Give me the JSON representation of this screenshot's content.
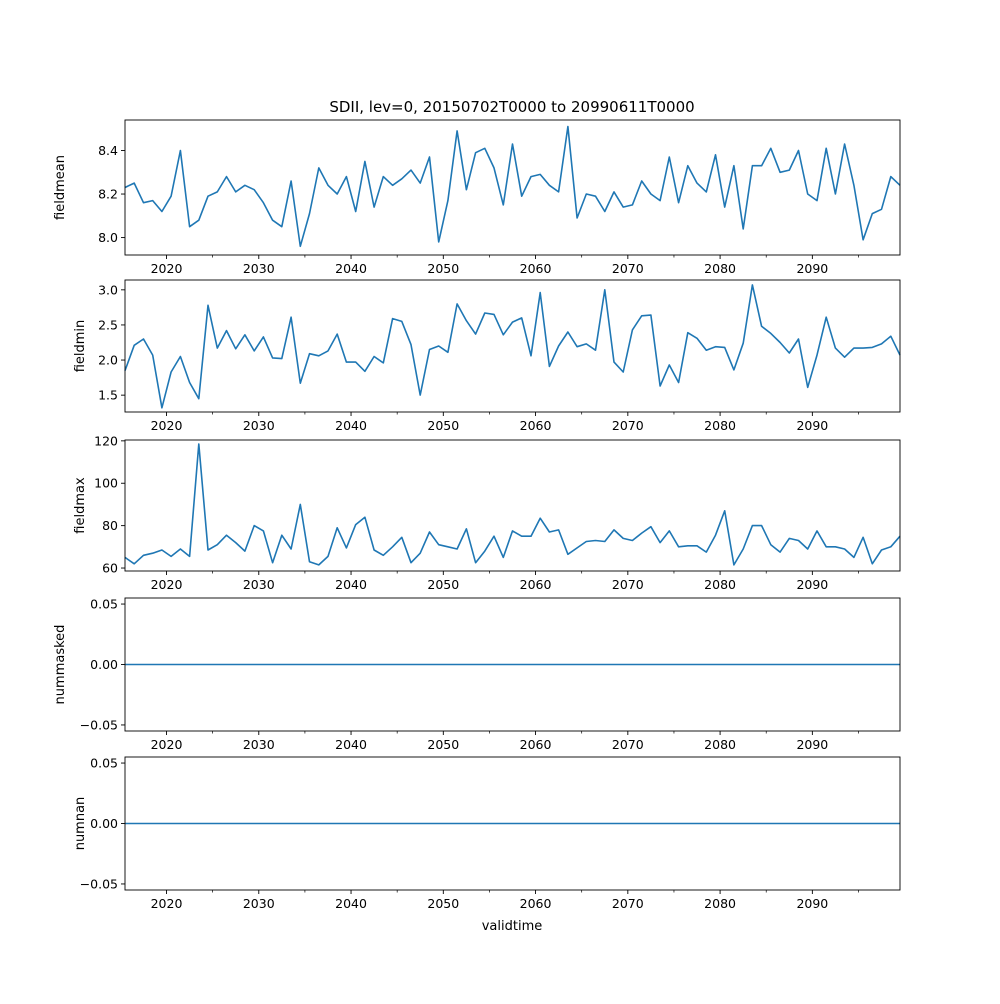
{
  "chart_data": {
    "type": "line",
    "title": "SDII, lev=0, 20150702T0000 to 20990611T0000",
    "xlabel": "validtime",
    "x_start": 2015.5,
    "x_step": 1,
    "xlim": [
      2015.5,
      2099.5
    ],
    "x_major_ticks": [
      2020,
      2030,
      2040,
      2050,
      2060,
      2070,
      2080,
      2090
    ],
    "x_tick_labels": [
      "2020",
      "2030",
      "2040",
      "2050",
      "2060",
      "2070",
      "2080",
      "2090"
    ],
    "x_minor_ticks": [
      2025,
      2035,
      2045,
      2055,
      2065,
      2075,
      2085,
      2095
    ],
    "line_color": "#1f77b4",
    "grid": false,
    "subplots": [
      {
        "ylabel": "fieldmean",
        "ylim": [
          7.92,
          8.54
        ],
        "y_ticks": [
          8.0,
          8.2,
          8.4
        ],
        "y_tick_labels": [
          "8.0",
          "8.2",
          "8.4"
        ],
        "values": [
          8.23,
          8.25,
          8.16,
          8.17,
          8.12,
          8.19,
          8.4,
          8.05,
          8.08,
          8.19,
          8.21,
          8.28,
          8.21,
          8.24,
          8.22,
          8.16,
          8.08,
          8.05,
          8.26,
          7.96,
          8.11,
          8.32,
          8.24,
          8.2,
          8.28,
          8.12,
          8.35,
          8.14,
          8.28,
          8.24,
          8.27,
          8.31,
          8.25,
          8.37,
          7.98,
          8.17,
          8.49,
          8.22,
          8.39,
          8.41,
          8.32,
          8.15,
          8.43,
          8.19,
          8.28,
          8.29,
          8.24,
          8.21,
          8.51,
          8.09,
          8.2,
          8.19,
          8.12,
          8.21,
          8.14,
          8.15,
          8.26,
          8.2,
          8.17,
          8.37,
          8.16,
          8.33,
          8.25,
          8.21,
          8.38,
          8.14,
          8.33,
          8.04,
          8.33,
          8.33,
          8.41,
          8.3,
          8.31,
          8.4,
          8.2,
          8.17,
          8.41,
          8.2,
          8.43,
          8.24,
          7.99,
          8.11,
          8.13,
          8.28,
          8.24
        ]
      },
      {
        "ylabel": "fieldmin",
        "ylim": [
          1.26,
          3.14
        ],
        "y_ticks": [
          1.5,
          2.0,
          2.5,
          3.0
        ],
        "y_tick_labels": [
          "1.5",
          "2.0",
          "2.5",
          "3.0"
        ],
        "values": [
          1.85,
          2.21,
          2.3,
          2.07,
          1.32,
          1.83,
          2.05,
          1.68,
          1.45,
          2.78,
          2.17,
          2.42,
          2.16,
          2.36,
          2.13,
          2.33,
          2.03,
          2.02,
          2.61,
          1.67,
          2.09,
          2.06,
          2.13,
          2.37,
          1.97,
          1.97,
          1.84,
          2.05,
          1.96,
          2.59,
          2.55,
          2.22,
          1.5,
          2.15,
          2.2,
          2.11,
          2.8,
          2.56,
          2.37,
          2.67,
          2.65,
          2.36,
          2.54,
          2.6,
          2.06,
          2.96,
          1.91,
          2.2,
          2.4,
          2.19,
          2.23,
          2.14,
          3.0,
          1.97,
          1.83,
          2.43,
          2.63,
          2.64,
          1.63,
          1.93,
          1.68,
          2.39,
          2.31,
          2.14,
          2.19,
          2.18,
          1.86,
          2.24,
          3.07,
          2.48,
          2.38,
          2.25,
          2.1,
          2.3,
          1.61,
          2.07,
          2.61,
          2.17,
          2.04,
          2.17,
          2.17,
          2.18,
          2.23,
          2.34,
          2.07
        ]
      },
      {
        "ylabel": "fieldmax",
        "ylim": [
          58.6,
          120.4
        ],
        "y_ticks": [
          60,
          80,
          100,
          120
        ],
        "y_tick_labels": [
          "60",
          "80",
          "100",
          "120"
        ],
        "values": [
          65,
          62,
          66,
          67,
          68.5,
          65.5,
          69,
          65.5,
          118.5,
          68.5,
          71,
          75.5,
          72,
          68,
          80,
          77.5,
          62.5,
          75.5,
          69,
          90,
          63,
          61.5,
          65.5,
          79,
          69.5,
          80.5,
          84,
          68.5,
          66,
          70,
          74.5,
          62.5,
          67,
          77,
          71,
          70,
          69,
          78.5,
          62.5,
          68,
          75,
          65,
          77.5,
          75,
          75,
          83.5,
          77,
          78,
          66.5,
          69.5,
          72.5,
          73,
          72.5,
          78,
          74,
          73,
          76.5,
          79.5,
          72,
          77.5,
          70,
          70.5,
          70.5,
          67.5,
          75.5,
          87,
          61.5,
          69,
          80,
          80,
          71,
          67.5,
          74,
          73,
          69,
          77.5,
          70,
          70,
          69,
          65,
          74.5,
          62,
          68.5,
          70,
          75
        ]
      },
      {
        "ylabel": "nummasked",
        "ylim": [
          -0.055,
          0.055
        ],
        "y_ticks": [
          -0.05,
          0.0,
          0.05
        ],
        "y_tick_labels": [
          "−0.05",
          "0.00",
          "0.05"
        ],
        "values": "zeros"
      },
      {
        "ylabel": "numnan",
        "ylim": [
          -0.055,
          0.055
        ],
        "y_ticks": [
          -0.05,
          0.0,
          0.05
        ],
        "y_tick_labels": [
          "−0.05",
          "0.00",
          "0.05"
        ],
        "values": "zeros"
      }
    ]
  }
}
